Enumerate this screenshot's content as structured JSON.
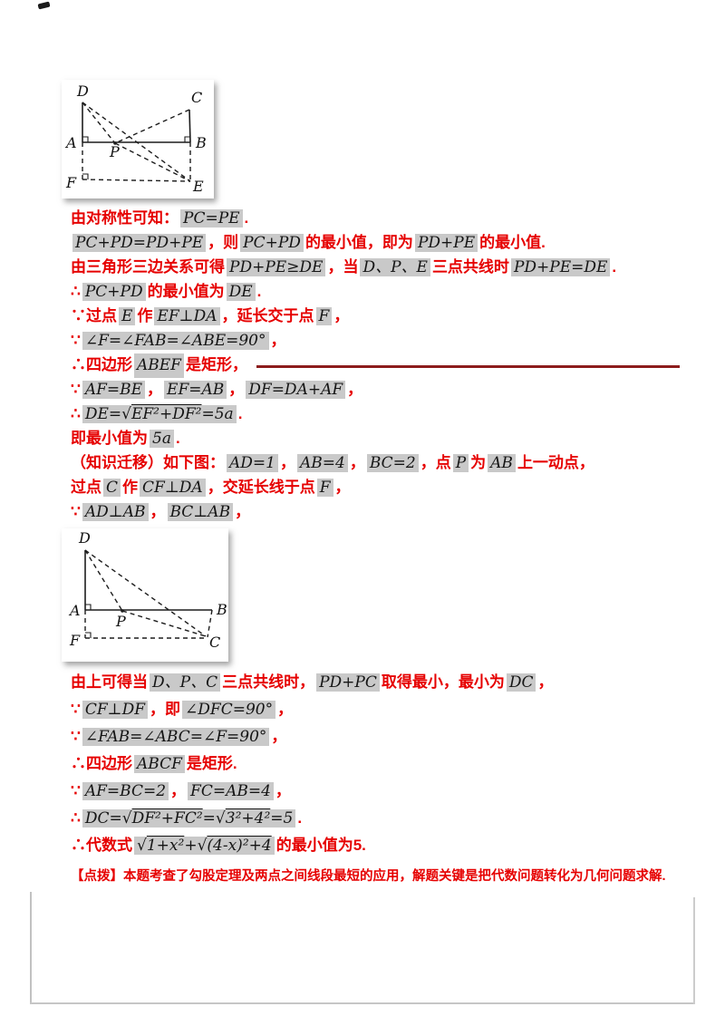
{
  "page": {
    "background": "#ffffff",
    "red_text_color": "#e60000",
    "rule_color": "#8c1c1c"
  },
  "figures": {
    "fig1": {
      "labels": {
        "D": "D",
        "C": "C",
        "A": "A",
        "B": "B",
        "P": "P",
        "F": "F",
        "E": "E"
      }
    },
    "fig2": {
      "labels": {
        "D": "D",
        "A": "A",
        "B": "B",
        "P": "P",
        "F": "F",
        "C": "C"
      }
    }
  },
  "solution": {
    "part1_lines": [
      {
        "segments": [
          {
            "t": "由对称性可知：",
            "k": "red"
          },
          {
            "t": "PC=PE",
            "k": "math"
          },
          {
            "t": ".",
            "k": "red"
          }
        ]
      },
      {
        "segments": [
          {
            "t": "PC+PD=PD+PE",
            "k": "math"
          },
          {
            "t": "，则",
            "k": "red"
          },
          {
            "t": "PC+PD",
            "k": "math"
          },
          {
            "t": "的最小值，即为",
            "k": "red"
          },
          {
            "t": "PD+PE",
            "k": "math"
          },
          {
            "t": "的最小值.",
            "k": "red"
          }
        ]
      },
      {
        "segments": [
          {
            "t": "由三角形三边关系可得",
            "k": "red"
          },
          {
            "t": "PD+PE≥DE",
            "k": "math"
          },
          {
            "t": "，当",
            "k": "red"
          },
          {
            "t": "D、P、E",
            "k": "math"
          },
          {
            "t": "三点共线时",
            "k": "red"
          },
          {
            "t": "PD+PE=DE",
            "k": "math"
          },
          {
            "t": ".",
            "k": "red"
          }
        ]
      },
      {
        "segments": [
          {
            "t": "∴",
            "k": "red"
          },
          {
            "t": "PC+PD",
            "k": "math"
          },
          {
            "t": "的最小值为",
            "k": "red"
          },
          {
            "t": "DE",
            "k": "math"
          },
          {
            "t": ".",
            "k": "red"
          }
        ]
      },
      {
        "segments": [
          {
            "t": "∵过点",
            "k": "red"
          },
          {
            "t": "E",
            "k": "math"
          },
          {
            "t": "作",
            "k": "red"
          },
          {
            "t": "EF⊥DA",
            "k": "math"
          },
          {
            "t": "，延长交于点",
            "k": "red"
          },
          {
            "t": "F",
            "k": "math"
          },
          {
            "t": "，",
            "k": "red"
          }
        ]
      },
      {
        "segments": [
          {
            "t": "∵",
            "k": "red"
          },
          {
            "t": "∠F=∠FAB=∠ABE=90°",
            "k": "math"
          },
          {
            "t": "，",
            "k": "red"
          }
        ]
      },
      {
        "rule": true,
        "segments": [
          {
            "t": "∴四边形",
            "k": "red"
          },
          {
            "t": "ABEF",
            "k": "math"
          },
          {
            "t": "是矩形，",
            "k": "red"
          }
        ]
      },
      {
        "segments": [
          {
            "t": "∵",
            "k": "red"
          },
          {
            "t": "AF=BE",
            "k": "math"
          },
          {
            "t": "，",
            "k": "red"
          },
          {
            "t": "EF=AB",
            "k": "math"
          },
          {
            "t": "，",
            "k": "red"
          },
          {
            "t": "DF=DA+AF",
            "k": "math"
          },
          {
            "t": "，",
            "k": "red"
          }
        ]
      },
      {
        "segments": [
          {
            "t": "∴",
            "k": "red"
          },
          {
            "t": "DE=√(EF²+DF²)=5a",
            "k": "math"
          },
          {
            "t": ".",
            "k": "red"
          }
        ]
      },
      {
        "segments": [
          {
            "t": "即最小值为",
            "k": "red"
          },
          {
            "t": "5a",
            "k": "math"
          },
          {
            "t": ".",
            "k": "red"
          }
        ]
      },
      {
        "segments": [
          {
            "t": "（知识迁移）如下图：",
            "k": "red"
          },
          {
            "t": "AD=1",
            "k": "math"
          },
          {
            "t": "，",
            "k": "red"
          },
          {
            "t": "AB=4",
            "k": "math"
          },
          {
            "t": "，",
            "k": "red"
          },
          {
            "t": "BC=2",
            "k": "math"
          },
          {
            "t": "，点",
            "k": "red"
          },
          {
            "t": "P",
            "k": "math"
          },
          {
            "t": "为",
            "k": "red"
          },
          {
            "t": "AB",
            "k": "math"
          },
          {
            "t": "上一动点，",
            "k": "red"
          }
        ]
      },
      {
        "segments": [
          {
            "t": "过点",
            "k": "red"
          },
          {
            "t": "C",
            "k": "math"
          },
          {
            "t": "作",
            "k": "red"
          },
          {
            "t": "CF⊥DA",
            "k": "math"
          },
          {
            "t": "，交延长线于点",
            "k": "red"
          },
          {
            "t": "F",
            "k": "math"
          },
          {
            "t": "，",
            "k": "red"
          }
        ]
      },
      {
        "segments": [
          {
            "t": "∵",
            "k": "red"
          },
          {
            "t": "AD⊥AB",
            "k": "math"
          },
          {
            "t": "，",
            "k": "red"
          },
          {
            "t": "BC⊥AB",
            "k": "math"
          },
          {
            "t": "，",
            "k": "red"
          }
        ]
      }
    ],
    "part2_lines": [
      {
        "segments": [
          {
            "t": "由上可得当",
            "k": "red"
          },
          {
            "t": "D、P、C",
            "k": "math"
          },
          {
            "t": "三点共线时，",
            "k": "red"
          },
          {
            "t": "PD+PC",
            "k": "math"
          },
          {
            "t": "取得最小，最小为",
            "k": "red"
          },
          {
            "t": "DC",
            "k": "math"
          },
          {
            "t": "，",
            "k": "red"
          }
        ]
      },
      {
        "segments": [
          {
            "t": "∵",
            "k": "red"
          },
          {
            "t": "CF⊥DF",
            "k": "math"
          },
          {
            "t": "，即",
            "k": "red"
          },
          {
            "t": "∠DFC=90°",
            "k": "math"
          },
          {
            "t": "，",
            "k": "red"
          }
        ]
      },
      {
        "segments": [
          {
            "t": "∵",
            "k": "red"
          },
          {
            "t": "∠FAB=∠ABC=∠F=90°",
            "k": "math"
          },
          {
            "t": "，",
            "k": "red"
          }
        ]
      },
      {
        "segments": [
          {
            "t": "∴四边形",
            "k": "red"
          },
          {
            "t": "ABCF",
            "k": "math"
          },
          {
            "t": "是矩形.",
            "k": "red"
          }
        ]
      },
      {
        "segments": [
          {
            "t": "∵",
            "k": "red"
          },
          {
            "t": "AF=BC=2",
            "k": "math"
          },
          {
            "t": "，",
            "k": "red"
          },
          {
            "t": "FC=AB=4",
            "k": "math"
          },
          {
            "t": "，",
            "k": "red"
          }
        ]
      },
      {
        "segments": [
          {
            "t": "∴",
            "k": "red"
          },
          {
            "t": "DC=√(DF²+FC²)=√(3²+4²)=5",
            "k": "math"
          },
          {
            "t": ".",
            "k": "red"
          }
        ]
      },
      {
        "segments": [
          {
            "t": "∴代数式",
            "k": "red"
          },
          {
            "t": "√(1+x²)+√((4-x)²+4)",
            "k": "math"
          },
          {
            "t": "的最小值为5.",
            "k": "red"
          }
        ]
      }
    ],
    "note": "【点拨】本题考查了勾股定理及两点之间线段最短的应用，解题关键是把代数问题转化为几何问题求解."
  }
}
